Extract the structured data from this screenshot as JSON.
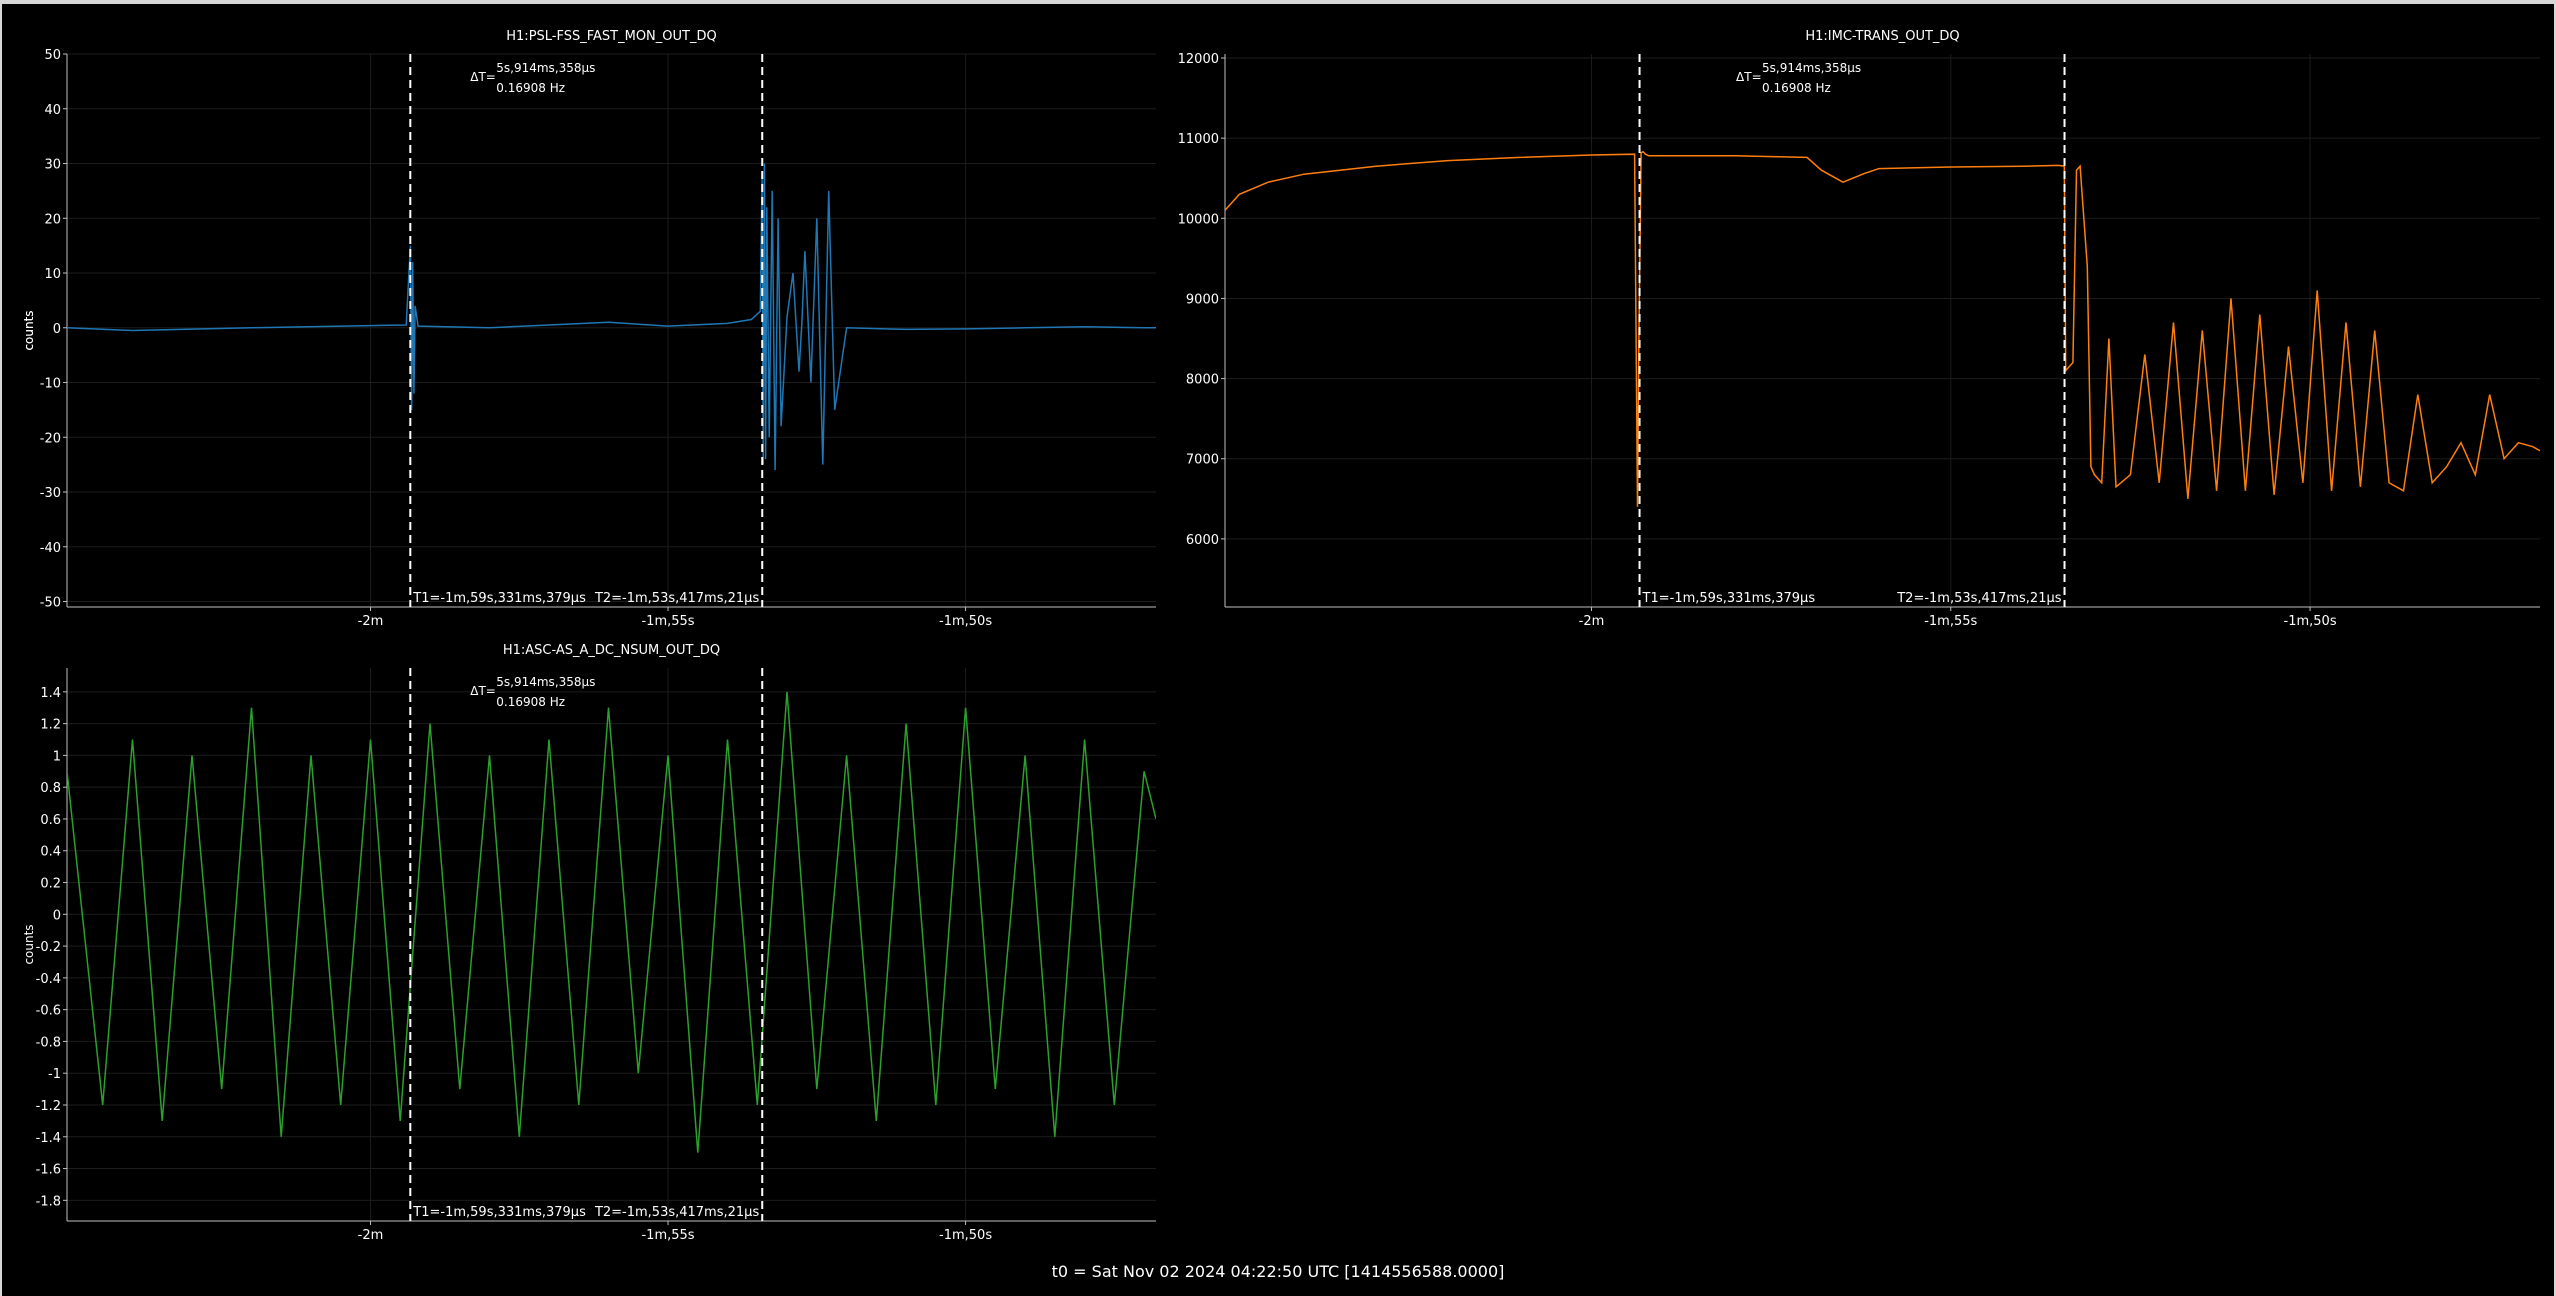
{
  "footer": "t0 = Sat Nov 02 2024 04:22:50 UTC [1414556588.0000]",
  "cursors": {
    "t1_label": "T1=-1m,59s,331ms,379µs",
    "t2_label": "T2=-1m,53s,417ms,21µs",
    "delta_label": "ΔT=",
    "delta_time": "5s,914ms,358µs",
    "delta_freq": "0.16908 Hz"
  },
  "chart_data": [
    {
      "type": "line",
      "title": "H1:PSL-FSS_FAST_MON_OUT_DQ",
      "ylabel": "counts",
      "color": "#1f77b4",
      "xlim": [
        -125.1,
        -106.8
      ],
      "ylim": [
        -51,
        50
      ],
      "x_ticks": [
        {
          "v": -120,
          "label": "-2m"
        },
        {
          "v": -115,
          "label": "-1m,55s"
        },
        {
          "v": -110,
          "label": "-1m,50s"
        }
      ],
      "y_ticks": [
        {
          "v": 50,
          "label": "50"
        },
        {
          "v": 40,
          "label": "40"
        },
        {
          "v": 30,
          "label": "30"
        },
        {
          "v": 20,
          "label": "20"
        },
        {
          "v": 10,
          "label": "10"
        },
        {
          "v": 0,
          "label": "0"
        },
        {
          "v": -10,
          "label": "-10"
        },
        {
          "v": -20,
          "label": "-20"
        },
        {
          "v": -30,
          "label": "-30"
        },
        {
          "v": -40,
          "label": "-40"
        },
        {
          "v": -50,
          "label": "-50"
        }
      ],
      "cursor_t1": -119.331,
      "cursor_t2": -113.417,
      "series": [
        {
          "x": [
            -125.1,
            -124.0,
            -122.0,
            -120.0,
            -119.4,
            -119.33,
            -119.31,
            -119.29,
            -119.27,
            -119.25,
            -119.2,
            -118.0,
            -117.0,
            -116.0,
            -115.0,
            -114.0,
            -113.6,
            -113.45,
            -113.42,
            -113.4,
            -113.38,
            -113.36,
            -113.34,
            -113.3,
            -113.25,
            -113.2,
            -113.15,
            -113.1,
            -113.0,
            -112.9,
            -112.8,
            -112.75,
            -112.7,
            -112.6,
            -112.5,
            -112.4,
            -112.3,
            -112.2,
            -112.0,
            -111.0,
            -110.0,
            -109.0,
            -108.0,
            -107.0,
            -106.8
          ],
          "y": [
            0,
            -0.5,
            0,
            0.4,
            0.5,
            15,
            -15,
            12,
            -12,
            4,
            0.3,
            0,
            0.5,
            1,
            0.3,
            0.8,
            1.5,
            3,
            28,
            -25,
            30,
            -24,
            22,
            -20,
            25,
            -26,
            20,
            -18,
            2,
            10,
            -8,
            1,
            14,
            -10,
            20,
            -25,
            25,
            -15,
            0,
            -0.3,
            -0.2,
            0,
            0.2,
            0,
            0
          ]
        }
      ]
    },
    {
      "type": "line",
      "title": "H1:IMC-TRANS_OUT_DQ",
      "ylabel": "counts",
      "color": "#ff7f0e",
      "xlim": [
        -125.1,
        -106.8
      ],
      "ylim": [
        5150,
        12050
      ],
      "x_ticks": [
        {
          "v": -120,
          "label": "-2m"
        },
        {
          "v": -115,
          "label": "-1m,55s"
        },
        {
          "v": -110,
          "label": "-1m,50s"
        }
      ],
      "y_ticks": [
        {
          "v": 12000,
          "label": "12000"
        },
        {
          "v": 11000,
          "label": "11000"
        },
        {
          "v": 10000,
          "label": "10000"
        },
        {
          "v": 9000,
          "label": "9000"
        },
        {
          "v": 8000,
          "label": "8000"
        },
        {
          "v": 7000,
          "label": "7000"
        },
        {
          "v": 6000,
          "label": "6000"
        }
      ],
      "cursor_t1": -119.331,
      "cursor_t2": -113.417,
      "series": [
        {
          "x": [
            -125.1,
            -124.9,
            -124.5,
            -124.0,
            -123.0,
            -122.0,
            -121.0,
            -120.0,
            -119.4,
            -119.36,
            -119.34,
            -119.31,
            -119.28,
            -119.25,
            -119.2,
            -118.0,
            -117.5,
            -117.0,
            -116.8,
            -116.5,
            -116.2,
            -116.0,
            -115.0,
            -114.0,
            -113.5,
            -113.42,
            -113.4,
            -113.3,
            -113.25,
            -113.2,
            -113.1,
            -113.05,
            -113.0,
            -112.9,
            -112.8,
            -112.7,
            -112.5,
            -112.3,
            -112.1,
            -111.9,
            -111.7,
            -111.5,
            -111.3,
            -111.1,
            -110.9,
            -110.7,
            -110.5,
            -110.3,
            -110.1,
            -109.9,
            -109.7,
            -109.5,
            -109.3,
            -109.1,
            -108.9,
            -108.7,
            -108.5,
            -108.3,
            -108.1,
            -107.9,
            -107.7,
            -107.5,
            -107.3,
            -107.1,
            -106.9,
            -106.8
          ],
          "y": [
            10100,
            10300,
            10450,
            10550,
            10650,
            10720,
            10760,
            10790,
            10800,
            6400,
            8500,
            10820,
            10830,
            10800,
            10780,
            10780,
            10770,
            10760,
            10600,
            10450,
            10560,
            10620,
            10640,
            10650,
            10660,
            10650,
            8100,
            8200,
            10600,
            10650,
            9400,
            6900,
            6800,
            6700,
            8500,
            6650,
            6800,
            8300,
            6700,
            8700,
            6500,
            8600,
            6600,
            9000,
            6600,
            8800,
            6550,
            8400,
            6700,
            9100,
            6600,
            8700,
            6650,
            8600,
            6700,
            6600,
            7800,
            6700,
            6900,
            7200,
            6800,
            7800,
            7000,
            7200,
            7150,
            7100
          ]
        }
      ]
    },
    {
      "type": "line",
      "title": "H1:ASC-AS_A_DC_NSUM_OUT_DQ",
      "ylabel": "counts",
      "color": "#2ca02c",
      "xlim": [
        -125.1,
        -106.8
      ],
      "ylim": [
        -1.93,
        1.55
      ],
      "x_ticks": [
        {
          "v": -120,
          "label": "-2m"
        },
        {
          "v": -115,
          "label": "-1m,55s"
        },
        {
          "v": -110,
          "label": "-1m,50s"
        }
      ],
      "y_ticks": [
        {
          "v": 1.4,
          "label": "1.4"
        },
        {
          "v": 1.2,
          "label": "1.2"
        },
        {
          "v": 1,
          "label": "1"
        },
        {
          "v": 0.8,
          "label": "0.8"
        },
        {
          "v": 0.6,
          "label": "0.6"
        },
        {
          "v": 0.4,
          "label": "0.4"
        },
        {
          "v": 0.2,
          "label": "0.2"
        },
        {
          "v": 0,
          "label": "0"
        },
        {
          "v": -0.2,
          "label": "-0.2"
        },
        {
          "v": -0.4,
          "label": "-0.4"
        },
        {
          "v": -0.6,
          "label": "-0.6"
        },
        {
          "v": -0.8,
          "label": "-0.8"
        },
        {
          "v": -1,
          "label": "-1"
        },
        {
          "v": -1.2,
          "label": "-1.2"
        },
        {
          "v": -1.4,
          "label": "-1.4"
        },
        {
          "v": -1.6,
          "label": "-1.6"
        },
        {
          "v": -1.8,
          "label": "-1.8"
        }
      ],
      "cursor_t1": -119.331,
      "cursor_t2": -113.417,
      "series": [
        {
          "x": [
            -125.1,
            -124.5,
            -124.0,
            -123.5,
            -123.0,
            -122.5,
            -122.0,
            -121.5,
            -121.0,
            -120.5,
            -120.0,
            -119.5,
            -119.0,
            -118.5,
            -118.0,
            -117.5,
            -117.0,
            -116.5,
            -116.0,
            -115.5,
            -115.0,
            -114.5,
            -114.0,
            -113.5,
            -113.0,
            -112.5,
            -112.0,
            -111.5,
            -111.0,
            -110.5,
            -110.0,
            -109.5,
            -109.0,
            -108.5,
            -108.0,
            -107.5,
            -107.0,
            -106.8
          ],
          "y": [
            0.9,
            -1.2,
            1.1,
            -1.3,
            1.0,
            -1.1,
            1.3,
            -1.4,
            1.0,
            -1.2,
            1.1,
            -1.3,
            1.2,
            -1.1,
            1.0,
            -1.4,
            1.1,
            -1.2,
            1.3,
            -1.0,
            1.0,
            -1.5,
            1.1,
            -1.2,
            1.4,
            -1.1,
            1.0,
            -1.3,
            1.2,
            -1.2,
            1.3,
            -1.1,
            1.0,
            -1.4,
            1.1,
            -1.2,
            0.9,
            0.6
          ]
        }
      ]
    }
  ]
}
